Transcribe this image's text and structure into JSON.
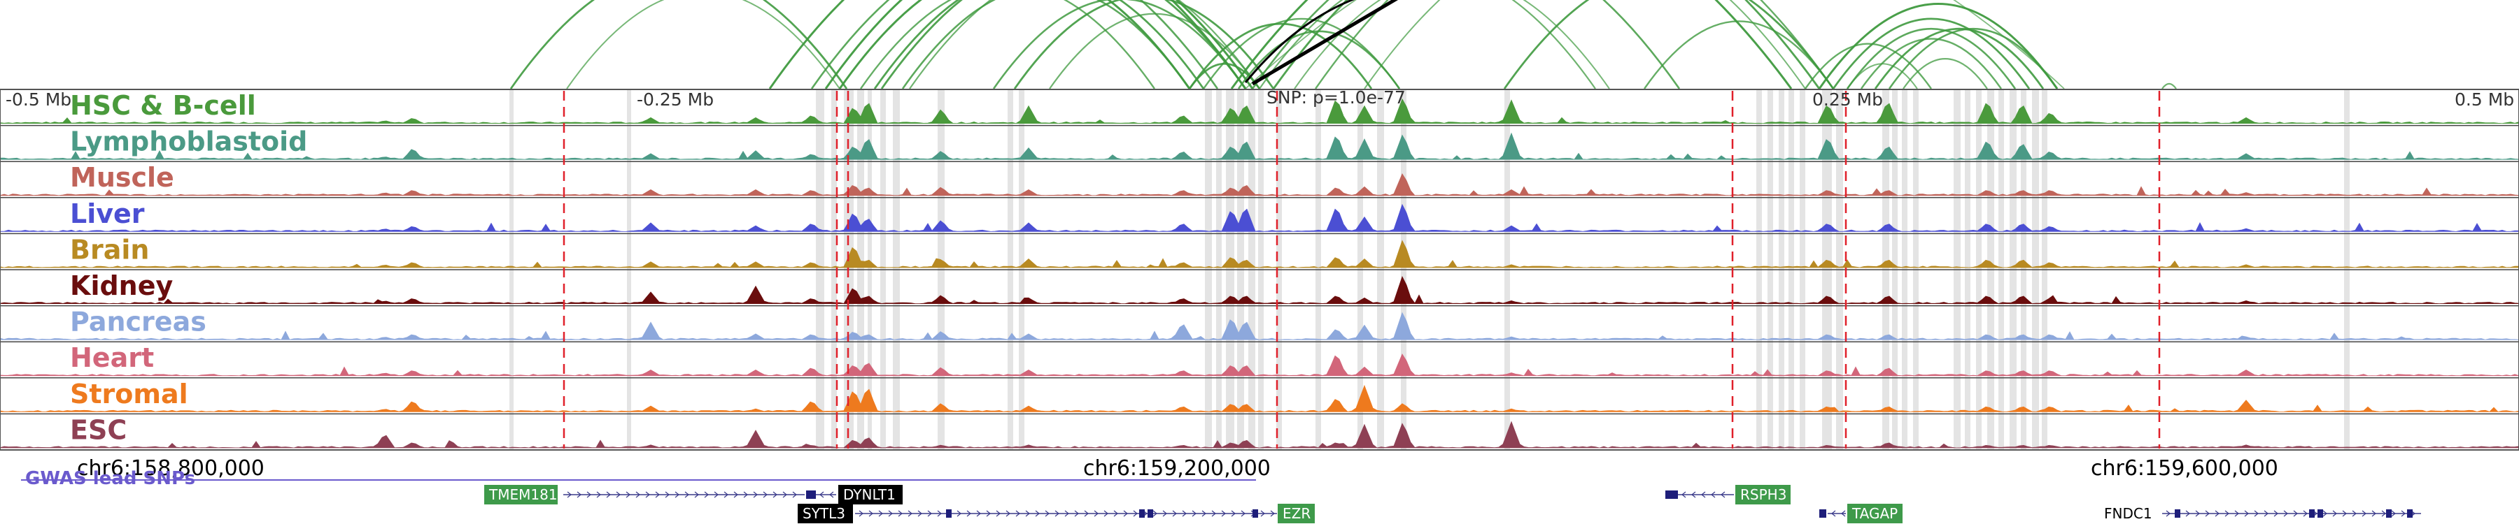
{
  "browser": {
    "axis": {
      "left_label": "-0.5 Mb",
      "q1_label": "-0.25 Mb",
      "q3_label": "0.25 Mb",
      "right_label": "0.5 Mb",
      "snp_label": "SNP: p=1.0e-77"
    },
    "tracks": [
      {
        "label": "HSC & B-cell",
        "color": "#4a9a3c"
      },
      {
        "label": "Lymphoblastoid",
        "color": "#4b9a86"
      },
      {
        "label": "Muscle",
        "color": "#c0645a"
      },
      {
        "label": "Liver",
        "color": "#4b4fd3"
      },
      {
        "label": "Brain",
        "color": "#b88a22"
      },
      {
        "label": "Kidney",
        "color": "#6a0d0d"
      },
      {
        "label": "Pancreas",
        "color": "#8da8dc"
      },
      {
        "label": "Heart",
        "color": "#d2667a"
      },
      {
        "label": "Stromal",
        "color": "#ee7a1e"
      },
      {
        "label": "ESC",
        "color": "#8e4054"
      }
    ],
    "coordinates": [
      "chr6:158,800,000",
      "chr6:159,200,000",
      "chr6:159,600,000"
    ],
    "gwas_label": "GWAS lead SNPs",
    "genes": [
      {
        "name": "TMEM181",
        "style": "green"
      },
      {
        "name": "DYNLT1",
        "style": "black"
      },
      {
        "name": "SYTL3",
        "style": "black"
      },
      {
        "name": "EZR",
        "style": "green"
      },
      {
        "name": "RSPH3",
        "style": "green"
      },
      {
        "name": "TAGAP",
        "style": "green"
      },
      {
        "name": "FNDC1",
        "style": "plain"
      }
    ],
    "colors": {
      "loop": "#3f9a3f",
      "highlight_loop": "#000000",
      "gwas": "#6a5acd",
      "gene_green": "#3e9a4a",
      "red_dash": "#e0202a",
      "shade": "#e4e4e4"
    }
  }
}
